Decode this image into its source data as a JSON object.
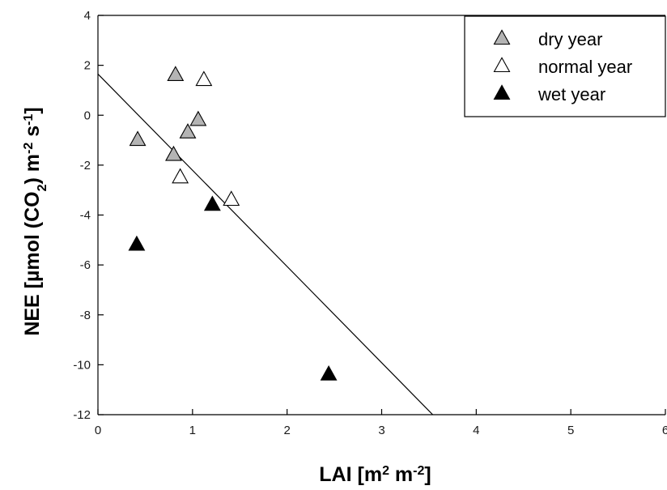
{
  "chart_data": {
    "type": "scatter",
    "title": "",
    "xlabel": {
      "parts": [
        {
          "text": "LAI [m"
        },
        {
          "text": "2",
          "sup": true
        },
        {
          "text": " m"
        },
        {
          "text": "-2",
          "sup": true
        },
        {
          "text": "]"
        }
      ]
    },
    "ylabel": {
      "parts": [
        {
          "text": "NEE [µmol (CO"
        },
        {
          "text": "2",
          "sub": true
        },
        {
          "text": ") m"
        },
        {
          "text": "-2",
          "sup": true
        },
        {
          "text": " s"
        },
        {
          "text": "-1",
          "sup": true
        },
        {
          "text": "]"
        }
      ]
    },
    "xlim": [
      0,
      6
    ],
    "ylim": [
      -12,
      4
    ],
    "xticks": [
      0,
      1,
      2,
      3,
      4,
      5,
      6
    ],
    "yticks": [
      -12,
      -10,
      -8,
      -6,
      -4,
      -2,
      0,
      2,
      4
    ],
    "grid": false,
    "legend_position": "top-right",
    "series": [
      {
        "name": "dry year",
        "marker": "triangle",
        "fill": "#b4b4b4",
        "points": [
          [
            0.42,
            -1.0
          ],
          [
            0.82,
            1.6
          ],
          [
            0.8,
            -1.6
          ],
          [
            0.95,
            -0.7
          ],
          [
            1.06,
            -0.2
          ]
        ]
      },
      {
        "name": "normal year",
        "marker": "triangle",
        "fill": "#ffffff",
        "points": [
          [
            0.87,
            -2.5
          ],
          [
            1.12,
            1.4
          ],
          [
            1.41,
            -3.4
          ]
        ]
      },
      {
        "name": "wet year",
        "marker": "triangle",
        "fill": "#000000",
        "points": [
          [
            0.41,
            -5.2
          ],
          [
            1.21,
            -3.6
          ],
          [
            2.44,
            -10.4
          ]
        ]
      }
    ],
    "regression_line": {
      "points": [
        [
          0,
          1.65
        ],
        [
          3.54,
          -12
        ]
      ]
    }
  }
}
